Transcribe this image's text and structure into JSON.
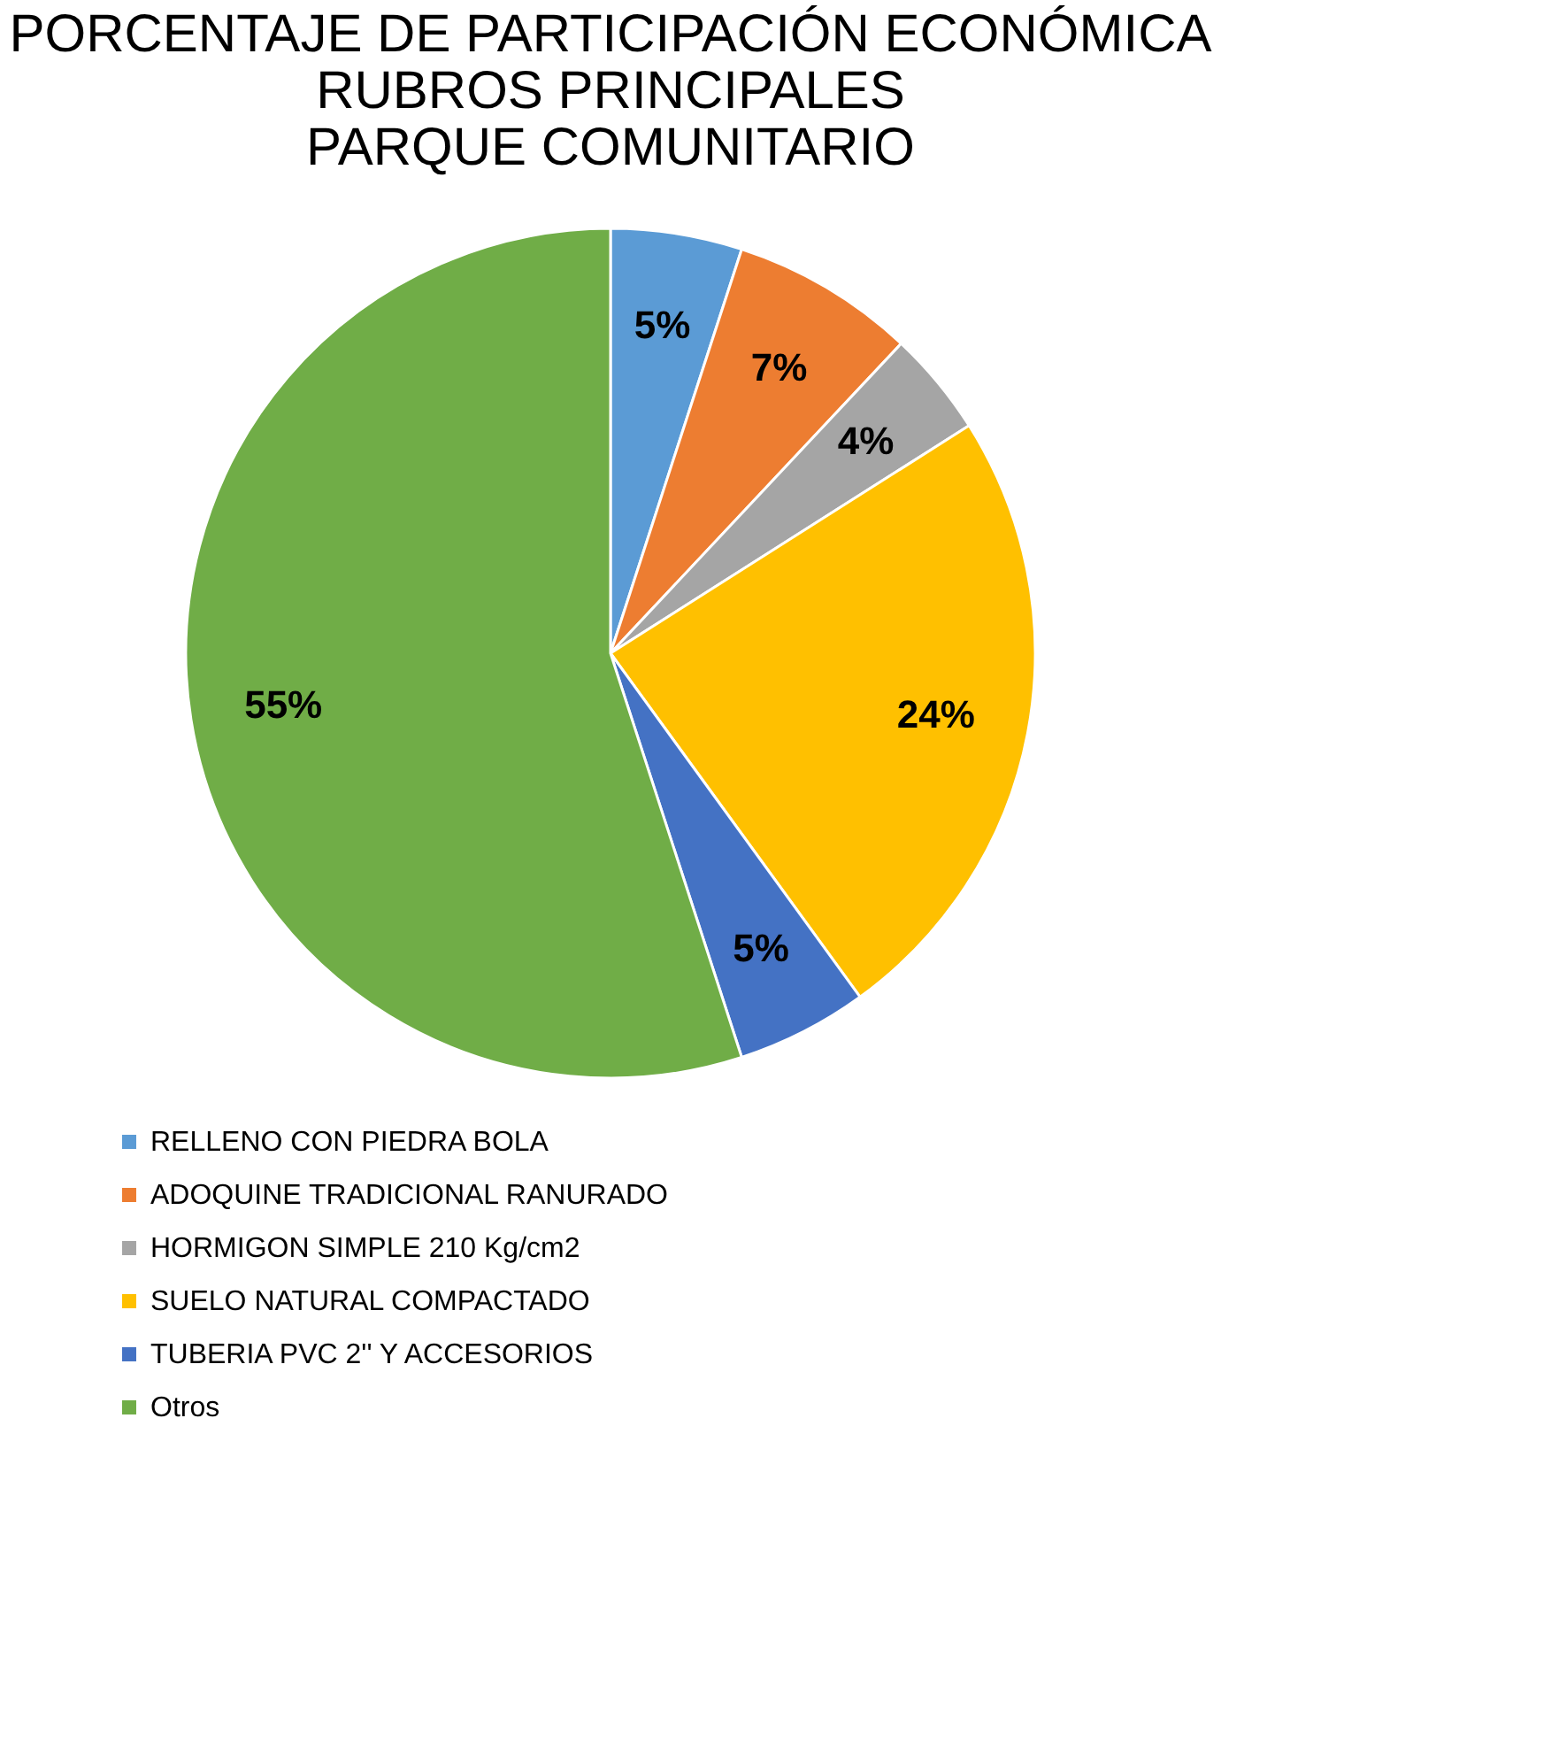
{
  "chart_data": {
    "type": "pie",
    "title": "PORCENTAJE DE PARTICIPACIÓN ECONÓMICA\nRUBROS PRINCIPALES\nPARQUE COMUNITARIO",
    "categories": [
      "RELLENO CON PIEDRA BOLA",
      "ADOQUINE TRADICIONAL RANURADO",
      "HORMIGON SIMPLE 210 Kg/cm2",
      "SUELO NATURAL COMPACTADO",
      "TUBERIA PVC 2'' Y ACCESORIOS",
      "Otros"
    ],
    "values": [
      5,
      7,
      4,
      24,
      5,
      55
    ],
    "value_labels": [
      "5%",
      "7%",
      "4%",
      "24%",
      "5%",
      "55%"
    ],
    "colors": [
      "#5b9bd5",
      "#ed7d31",
      "#a5a5a5",
      "#ffc000",
      "#4472c4",
      "#70ad47"
    ],
    "legend": "bottom"
  }
}
